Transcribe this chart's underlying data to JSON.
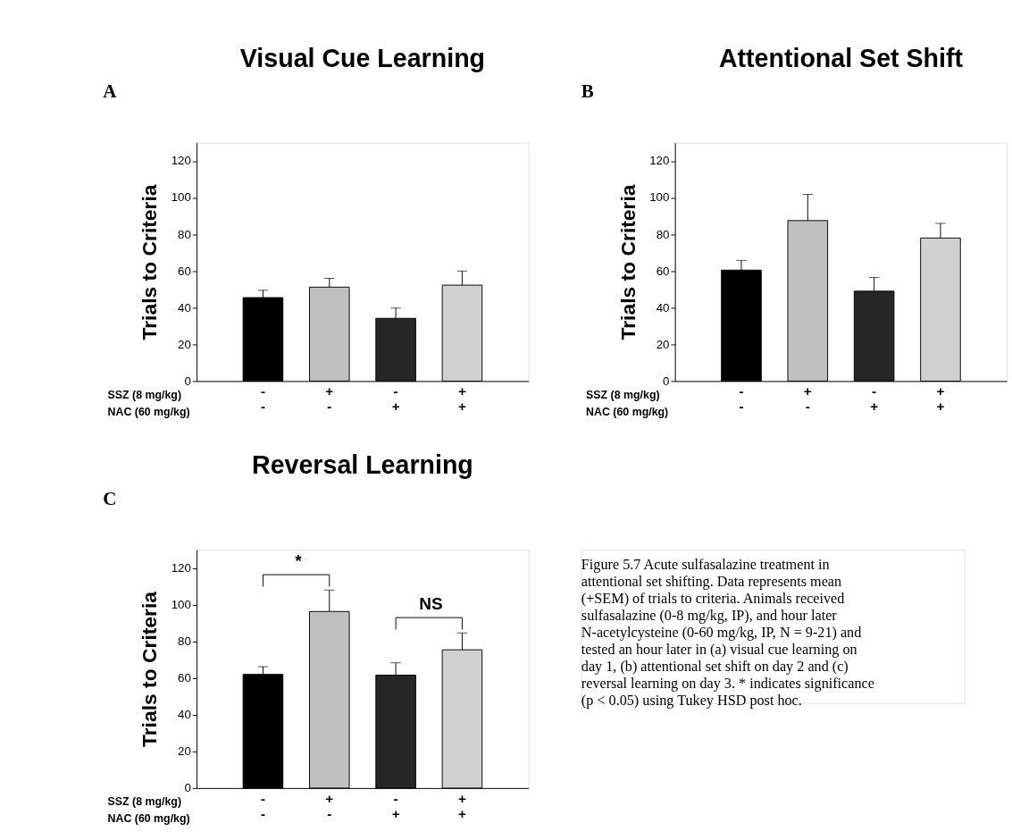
{
  "chart_data": [
    {
      "type": "bar",
      "title": "Visual Cue Learning",
      "ylabel": "Trials to Criteria",
      "xlabel": "SSZ (8 mg/kg)\nNAC (60 mg/kg)",
      "annotations": [
        "A"
      ],
      "categories": [
        "-\n-",
        "+\n-",
        "-\n+",
        "+\n+"
      ],
      "values": [
        45.5,
        51.2,
        34.2,
        52.3
      ],
      "errors": [
        [
          45.5,
          49.5
        ],
        [
          51.2,
          56
        ],
        [
          34.2,
          39.8
        ],
        [
          52.3,
          60
        ]
      ],
      "colors": [
        "#000000",
        "#c0c0c0",
        "#262626",
        "#d0d0d0"
      ],
      "ylim": [
        0,
        130
      ],
      "yticks": [
        0,
        20,
        40,
        60,
        80,
        100,
        120
      ],
      "grid": false
    },
    {
      "type": "bar",
      "title": "Attentional Set Shift",
      "ylabel": "Trials to Criteria",
      "xlabel": "SSZ (8 mg/kg)\nNAC (60 mg/kg)",
      "annotations": [
        "B"
      ],
      "categories": [
        "-\n-",
        "+\n-",
        "-\n+",
        "+\n+"
      ],
      "values": [
        60.5,
        87.5,
        49,
        78
      ],
      "errors": [
        [
          60.5,
          65.8
        ],
        [
          87.5,
          101.8
        ],
        [
          49,
          56.5
        ],
        [
          78,
          86
        ]
      ],
      "colors": [
        "#000000",
        "#c0c0c0",
        "#262626",
        "#d0d0d0"
      ],
      "ylim": [
        0,
        130
      ],
      "yticks": [
        0,
        20,
        40,
        60,
        80,
        100,
        120
      ],
      "grid": false
    },
    {
      "type": "bar",
      "title": "Reversal Learning",
      "ylabel": "Trials to Criteria",
      "xlabel": "SSZ (8 mg/kg)\nNAC (60 mg/kg)",
      "annotations": [
        "C",
        "*",
        "NS"
      ],
      "categories": [
        "-\n-",
        "+\n-",
        "-\n+",
        "+\n+"
      ],
      "values": [
        62,
        96.3,
        61.6,
        75.4
      ],
      "errors": [
        [
          62,
          66.2
        ],
        [
          96.3,
          108
        ],
        [
          61.6,
          68.3
        ],
        [
          75.4,
          84.6
        ]
      ],
      "colors": [
        "#000000",
        "#c0c0c0",
        "#262626",
        "#d0d0d0"
      ],
      "ylim": [
        0,
        130
      ],
      "yticks": [
        0,
        20,
        40,
        60,
        80,
        100,
        120
      ],
      "grid": false
    },
    {
      "type": "other",
      "annotations": [
        "Figure 5.7 Acute sulfasalazine treatment in attentional set shifting. Data represents mean (+SEM) of trials to criteria. Animals received sulfasalazine (0-8 mg/kg, IP), and hour later N-acetylcysteine (0-60 mg/kg, IP, N = 9-21) and tested an hour later in (a) visual cue learning on day 1, (b) attentional set shift on day 2 and (c) reversal learning on day 3. * indicates significance (p < 0.05) using Tukey HSD post hoc."
      ]
    }
  ]
}
